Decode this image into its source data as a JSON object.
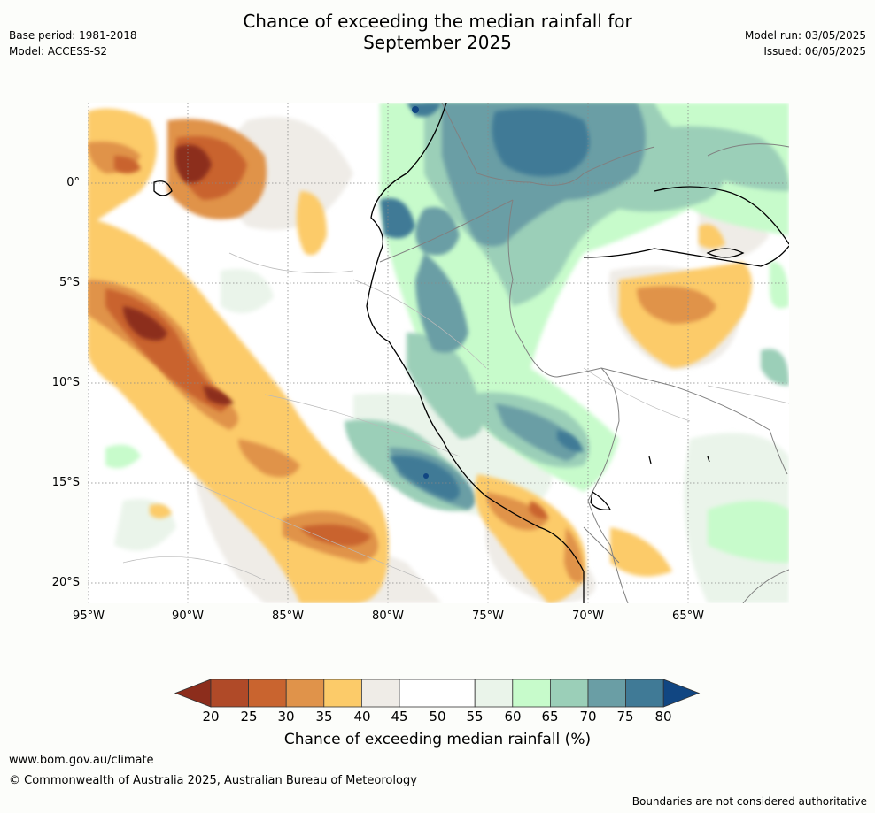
{
  "title_line1": "Chance of exceeding the median rainfall for",
  "title_line2": "September 2025",
  "meta_left": {
    "base_period": "Base period: 1981-2018",
    "model": "Model: ACCESS-S2"
  },
  "meta_right": {
    "model_run": "Model run: 03/05/2025",
    "issued": "Issued: 06/05/2025"
  },
  "lat_labels": [
    "0°",
    "5°S",
    "10°S",
    "15°S",
    "20°S"
  ],
  "lon_labels": [
    "95°W",
    "90°W",
    "85°W",
    "80°W",
    "75°W",
    "70°W",
    "65°W"
  ],
  "colorbar": {
    "ticks": [
      "20",
      "25",
      "30",
      "35",
      "40",
      "45",
      "50",
      "55",
      "60",
      "65",
      "70",
      "75",
      "80"
    ],
    "colors": [
      "#8c2d1c",
      "#b04a28",
      "#c9642f",
      "#e0934a",
      "#fccb69",
      "#efece7",
      "#ffffff",
      "#ffffff",
      "#eaf4ea",
      "#c7fbcb",
      "#9bcfb8",
      "#6a9ea5",
      "#407a96",
      "#114682"
    ],
    "title": "Chance of exceeding median rainfall (%)"
  },
  "footer": {
    "url": "www.bom.gov.au/climate",
    "copyright": "© Commonwealth of Australia 2025, Australian Bureau of Meteorology",
    "note": "Boundaries are not considered authoritative"
  }
}
